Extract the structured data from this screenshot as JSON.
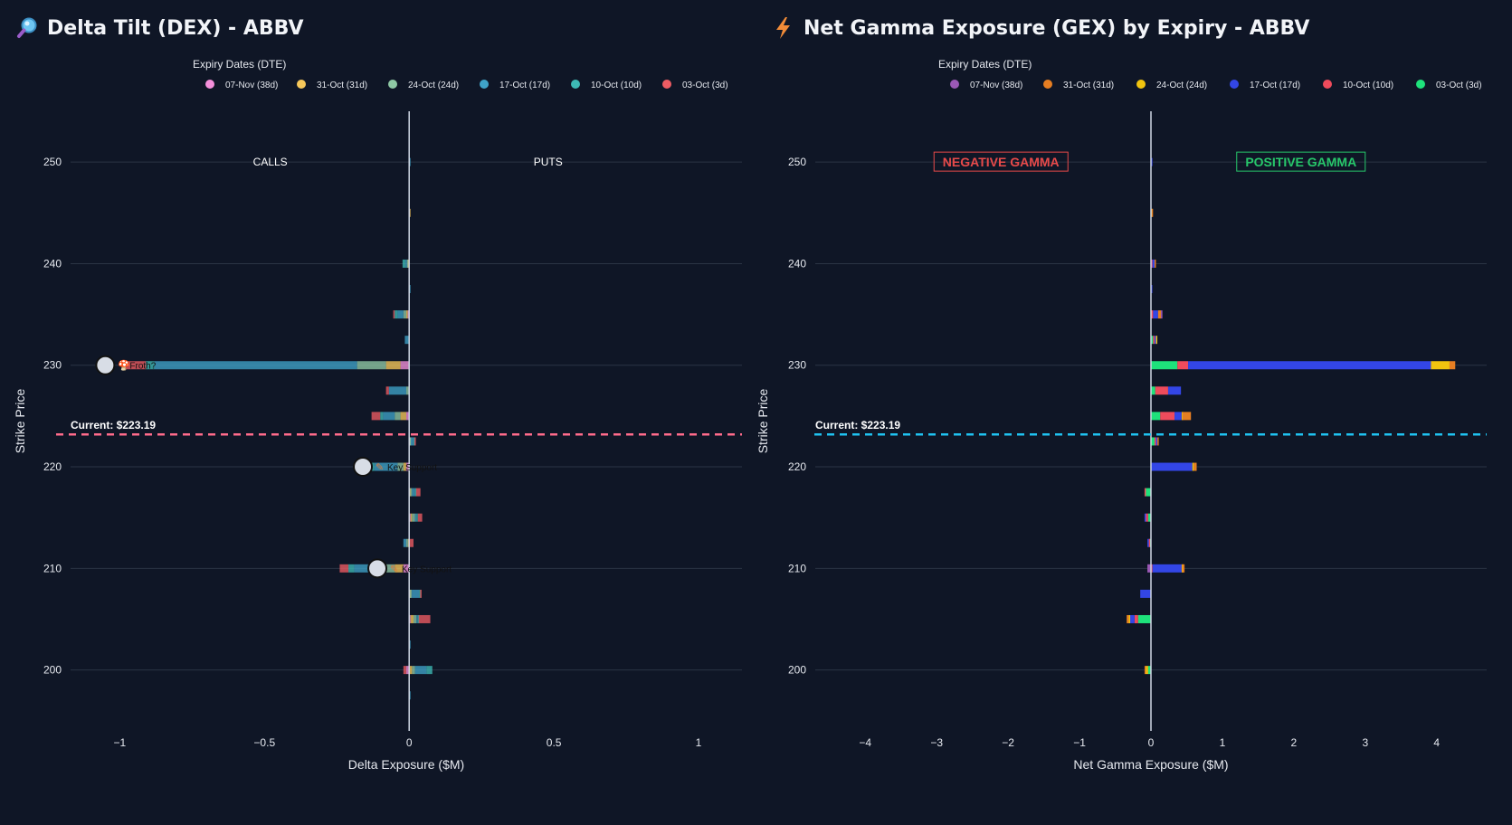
{
  "left": {
    "title": "Delta Tilt (DEX) - ABBV",
    "icon": "magnifier-icon",
    "legend_title": "Expiry Dates (DTE)",
    "legend": [
      {
        "label": "07-Nov (38d)",
        "color": "#f48fda"
      },
      {
        "label": "31-Oct (31d)",
        "color": "#f7c85a"
      },
      {
        "label": "24-Oct (24d)",
        "color": "#8fc9a5"
      },
      {
        "label": "17-Oct (17d)",
        "color": "#3fa3c8"
      },
      {
        "label": "10-Oct (10d)",
        "color": "#3dbab5"
      },
      {
        "label": "03-Oct (3d)",
        "color": "#ee5c63"
      }
    ],
    "side_labels": {
      "left": "CALLS",
      "right": "PUTS"
    },
    "current_label": "Current: $223.19",
    "current_color": "#ff6b8b",
    "markers": [
      {
        "label": "Froth?",
        "emoji": "🍄",
        "strike": 230,
        "x": -1.05
      },
      {
        "label": "Key Support",
        "emoji": "✎",
        "strike": 220,
        "x": -0.16
      },
      {
        "label": "Key Support",
        "emoji": "✎",
        "strike": 210,
        "x": -0.11
      }
    ]
  },
  "right": {
    "title": "Net Gamma Exposure (GEX) by Expiry - ABBV",
    "icon": "lightning-icon",
    "legend_title": "Expiry Dates (DTE)",
    "legend": [
      {
        "label": "07-Nov (38d)",
        "color": "#9b59b6"
      },
      {
        "label": "31-Oct (31d)",
        "color": "#e67e22"
      },
      {
        "label": "24-Oct (24d)",
        "color": "#f1c40f"
      },
      {
        "label": "17-Oct (17d)",
        "color": "#3346e6"
      },
      {
        "label": "10-Oct (10d)",
        "color": "#ef4b5c"
      },
      {
        "label": "03-Oct (3d)",
        "color": "#1ee27b"
      }
    ],
    "negative_label": "NEGATIVE GAMMA",
    "positive_label": "POSITIVE GAMMA",
    "negative_color": "#e84a4a",
    "positive_color": "#27c76a",
    "current_label": "Current: $223.19",
    "current_color": "#1fc2f0"
  },
  "chart_data": [
    {
      "type": "bar",
      "orientation": "horizontal",
      "stacked": true,
      "title": "Delta Tilt (DEX) - ABBV",
      "xlabel": "Delta Exposure ($M)",
      "ylabel": "Strike Price",
      "xlim": [
        -1.17,
        1.15
      ],
      "ylim": [
        194,
        255
      ],
      "x_ticks": [
        -1,
        -0.5,
        0,
        0.5,
        1
      ],
      "x_tick_labels": [
        "−1",
        "−0.5",
        "0",
        "0.5",
        "1"
      ],
      "y_ticks": [
        200,
        210,
        220,
        230,
        240,
        250
      ],
      "y_tick_labels": [
        "200",
        "210",
        "220",
        "230",
        "240",
        "250"
      ],
      "current_price": 223.19,
      "strikes": [
        250,
        245,
        240,
        237.5,
        235,
        232.5,
        230,
        227.5,
        225,
        222.5,
        220,
        217.5,
        215,
        212.5,
        210,
        207.5,
        205,
        202.5,
        200,
        197.5
      ],
      "series": [
        {
          "name": "07-Nov (38d)",
          "values": [
            0,
            0,
            0,
            0,
            -0.005,
            0,
            -0.03,
            0,
            -0.01,
            0,
            -0.01,
            0,
            0.005,
            0,
            -0.02,
            0,
            0.005,
            0,
            -0.01,
            0
          ]
        },
        {
          "name": "31-Oct (31d)",
          "values": [
            0,
            0.003,
            -0.005,
            0,
            -0.005,
            0,
            -0.05,
            0,
            -0.02,
            0.002,
            -0.01,
            0.004,
            0.005,
            -0.004,
            -0.03,
            0.003,
            0.01,
            0,
            0.01,
            0
          ]
        },
        {
          "name": "24-Oct (24d)",
          "values": [
            0,
            0,
            -0.003,
            0,
            -0.01,
            0,
            -0.1,
            -0.01,
            -0.02,
            0.003,
            -0.02,
            0.006,
            0.01,
            -0.006,
            -0.04,
            0.006,
            0.01,
            0,
            0.01,
            0
          ]
        },
        {
          "name": "17-Oct (17d)",
          "values": [
            0.002,
            0,
            -0.005,
            0.003,
            -0.02,
            -0.015,
            -0.7,
            -0.06,
            -0.04,
            0.01,
            -0.08,
            0.01,
            0.005,
            -0.01,
            -0.1,
            0.025,
            0.005,
            0.003,
            0.04,
            0.002
          ]
        },
        {
          "name": "10-Oct (10d)",
          "values": [
            0,
            0,
            -0.01,
            0,
            -0.01,
            0,
            -0.03,
            0,
            -0.01,
            0.003,
            -0.02,
            0.004,
            0.005,
            0,
            -0.02,
            0.004,
            0.003,
            0,
            0.02,
            0
          ]
        },
        {
          "name": "03-Oct (3d)",
          "values": [
            0,
            0,
            0,
            0,
            -0.005,
            0,
            -0.08,
            -0.01,
            -0.03,
            0.005,
            -0.04,
            0.015,
            0.015,
            0.015,
            -0.03,
            0.005,
            0.04,
            0,
            -0.01,
            0
          ]
        }
      ]
    },
    {
      "type": "bar",
      "orientation": "horizontal",
      "stacked": true,
      "title": "Net Gamma Exposure (GEX) by Expiry - ABBV",
      "xlabel": "Net Gamma Exposure ($M)",
      "ylabel": "Strike Price",
      "xlim": [
        -4.7,
        4.7
      ],
      "ylim": [
        194,
        255
      ],
      "x_ticks": [
        -4,
        -3,
        -2,
        -1,
        0,
        1,
        2,
        3,
        4
      ],
      "x_tick_labels": [
        "−4",
        "−3",
        "−2",
        "−1",
        "0",
        "1",
        "2",
        "3",
        "4"
      ],
      "y_ticks": [
        200,
        210,
        220,
        230,
        240,
        250
      ],
      "y_tick_labels": [
        "200",
        "210",
        "220",
        "230",
        "240",
        "250"
      ],
      "current_price": 223.19,
      "strikes": [
        250,
        245,
        240,
        237.5,
        235,
        232.5,
        230,
        227.5,
        225,
        222.5,
        220,
        217.5,
        215,
        212.5,
        210,
        207.5,
        205,
        202.5,
        200,
        197.5
      ],
      "series": [
        {
          "name": "03-Oct (3d)",
          "values": [
            0,
            0,
            0,
            0,
            0,
            0.03,
            0.37,
            0.06,
            0.13,
            0.05,
            0,
            -0.08,
            -0.04,
            -0.02,
            0,
            0,
            -0.18,
            0,
            -0.04,
            0
          ]
        },
        {
          "name": "10-Oct (10d)",
          "values": [
            0,
            0,
            0.02,
            0,
            0.03,
            0.02,
            0.15,
            0.18,
            0.2,
            0.02,
            0,
            -0.01,
            -0.03,
            -0.01,
            0.02,
            0,
            -0.05,
            0,
            0,
            0
          ]
        },
        {
          "name": "17-Oct (17d)",
          "values": [
            0.02,
            0,
            0.03,
            0.01,
            0.07,
            0.02,
            3.4,
            0.18,
            0.1,
            0.02,
            0.58,
            0,
            -0.02,
            -0.02,
            0.41,
            -0.15,
            -0.07,
            0,
            0,
            0
          ]
        },
        {
          "name": "24-Oct (24d)",
          "values": [
            0,
            0.01,
            0,
            0,
            0,
            0.01,
            0.26,
            0,
            0.01,
            0,
            0.02,
            0,
            0,
            0,
            0.01,
            0,
            -0.01,
            0,
            -0.03,
            0
          ]
        },
        {
          "name": "31-Oct (31d)",
          "values": [
            0,
            0.01,
            0.01,
            0,
            0.04,
            0,
            0.08,
            0,
            0.12,
            0.01,
            0.04,
            0,
            0,
            0,
            0.03,
            0,
            -0.03,
            0,
            -0.02,
            0
          ]
        },
        {
          "name": "07-Nov (38d)",
          "values": [
            0,
            0,
            0,
            0,
            0.02,
            0,
            0,
            0,
            0,
            0,
            0,
            0,
            0,
            0,
            -0.05,
            0,
            0,
            0,
            0,
            0
          ]
        }
      ]
    }
  ]
}
